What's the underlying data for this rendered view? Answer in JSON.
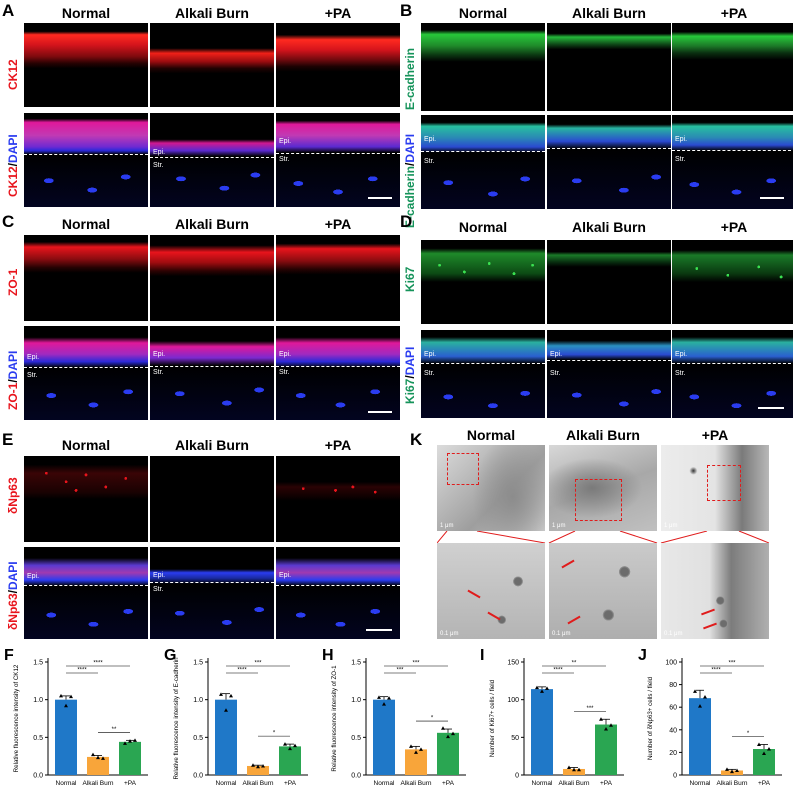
{
  "columns": [
    "Normal",
    "Alkali Burn",
    "+PA"
  ],
  "layer_labels": {
    "epi": "Epi.",
    "str": "Str."
  },
  "panels": {
    "A": {
      "letter": "A",
      "top_label": "CK12",
      "bottom_label_a": "CK12",
      "bottom_label_sep": "/",
      "bottom_label_b": "DAPI"
    },
    "B": {
      "letter": "B",
      "top_label": "E-cadherin",
      "bottom_label_a": "E-cadherin",
      "bottom_label_sep": "/",
      "bottom_label_b": "DAPI"
    },
    "C": {
      "letter": "C",
      "top_label": "ZO-1",
      "bottom_label_a": "ZO-1",
      "bottom_label_sep": "/",
      "bottom_label_b": "DAPI"
    },
    "D": {
      "letter": "D",
      "top_label": "Ki67",
      "bottom_label_a": "Ki67",
      "bottom_label_sep": "/",
      "bottom_label_b": "DAPI"
    },
    "E": {
      "letter": "E",
      "top_label": "δNp63",
      "bottom_label_a": "δNp63",
      "bottom_label_sep": "/",
      "bottom_label_b": "DAPI"
    },
    "K": {
      "letter": "K",
      "scale_top": [
        "1 μm",
        "1 μm",
        "1 μm"
      ],
      "scale_bottom": [
        "0.1 μm",
        "0.1 μm",
        "0.1 μm"
      ]
    }
  },
  "colors": {
    "red_stain": "#e8141c",
    "green_stain": "#22c33a",
    "dapi_blue": "#2a3cf0",
    "bar_normal": "#1f78c8",
    "bar_alkali": "#f8a53a",
    "bar_pa": "#2aa652",
    "error_bar": "#000000",
    "zoom_box": "#e01c1c"
  },
  "chart_data": [
    {
      "panel": "F",
      "type": "bar",
      "categories": [
        "Normal",
        "Alkali Burn",
        "+PA"
      ],
      "values": [
        1.0,
        0.24,
        0.44
      ],
      "errors": [
        0.05,
        0.02,
        0.02
      ],
      "points": [
        [
          1.05,
          0.92,
          1.04
        ],
        [
          0.27,
          0.23,
          0.22
        ],
        [
          0.42,
          0.45,
          0.46
        ]
      ],
      "ylabel": "Relative fluorescence intensity of CK12",
      "ylim": [
        0,
        1.5
      ],
      "yticks": [
        "0.0",
        "0.5",
        "1.0",
        "1.5"
      ],
      "significance": [
        {
          "from": 0,
          "to": 2,
          "label": "****"
        },
        {
          "from": 0,
          "to": 1,
          "label": "****"
        },
        {
          "from": 1,
          "to": 2,
          "label": "**"
        }
      ]
    },
    {
      "panel": "G",
      "type": "bar",
      "categories": [
        "Normal",
        "Alkali Burn",
        "+PA"
      ],
      "values": [
        1.0,
        0.12,
        0.38
      ],
      "errors": [
        0.08,
        0.01,
        0.03
      ],
      "points": [
        [
          1.07,
          0.86,
          1.05
        ],
        [
          0.13,
          0.11,
          0.12
        ],
        [
          0.41,
          0.35,
          0.39
        ]
      ],
      "ylabel": "Relative fluorescence intensity of E-cadherin",
      "ylim": [
        0,
        1.5
      ],
      "yticks": [
        "0.0",
        "0.5",
        "1.0",
        "1.5"
      ],
      "significance": [
        {
          "from": 0,
          "to": 2,
          "label": "***"
        },
        {
          "from": 0,
          "to": 1,
          "label": "****"
        },
        {
          "from": 1,
          "to": 2,
          "label": "*"
        }
      ]
    },
    {
      "panel": "H",
      "type": "bar",
      "categories": [
        "Normal",
        "Alkali Burn",
        "+PA"
      ],
      "values": [
        1.0,
        0.34,
        0.56
      ],
      "errors": [
        0.04,
        0.04,
        0.05
      ],
      "points": [
        [
          1.03,
          0.94,
          1.02
        ],
        [
          0.38,
          0.3,
          0.34
        ],
        [
          0.62,
          0.51,
          0.55
        ]
      ],
      "ylabel": "Relative fluorescence intensity of ZO-1",
      "ylim": [
        0,
        1.5
      ],
      "yticks": [
        "0.0",
        "0.5",
        "1.0",
        "1.5"
      ],
      "significance": [
        {
          "from": 0,
          "to": 2,
          "label": "***"
        },
        {
          "from": 0,
          "to": 1,
          "label": "***"
        },
        {
          "from": 1,
          "to": 2,
          "label": "*"
        }
      ]
    },
    {
      "panel": "I",
      "type": "bar",
      "categories": [
        "Normal",
        "Alkali Burn",
        "+PA"
      ],
      "values": [
        114,
        8,
        67
      ],
      "errors": [
        3,
        2,
        7
      ],
      "points": [
        [
          116,
          111,
          115
        ],
        [
          10,
          7,
          7
        ],
        [
          74,
          61,
          66
        ]
      ],
      "ylabel": "Number of Ki67+ cells / field",
      "ylim": [
        0,
        150
      ],
      "yticks": [
        "0",
        "50",
        "100",
        "150"
      ],
      "significance": [
        {
          "from": 0,
          "to": 2,
          "label": "**"
        },
        {
          "from": 0,
          "to": 1,
          "label": "****"
        },
        {
          "from": 1,
          "to": 2,
          "label": "***"
        }
      ]
    },
    {
      "panel": "J",
      "type": "bar",
      "categories": [
        "Normal",
        "Alkali Burn",
        "+PA"
      ],
      "values": [
        68,
        4,
        23
      ],
      "errors": [
        7,
        1,
        4
      ],
      "points": [
        [
          74,
          61,
          69
        ],
        [
          5,
          3,
          4
        ],
        [
          27,
          19,
          23
        ]
      ],
      "ylabel": "Number of δNp63+ cells / field",
      "ylim": [
        0,
        100
      ],
      "yticks": [
        "0",
        "20",
        "40",
        "60",
        "80",
        "100"
      ],
      "significance": [
        {
          "from": 0,
          "to": 2,
          "label": "***"
        },
        {
          "from": 0,
          "to": 1,
          "label": "****"
        },
        {
          "from": 1,
          "to": 2,
          "label": "*"
        }
      ]
    }
  ]
}
